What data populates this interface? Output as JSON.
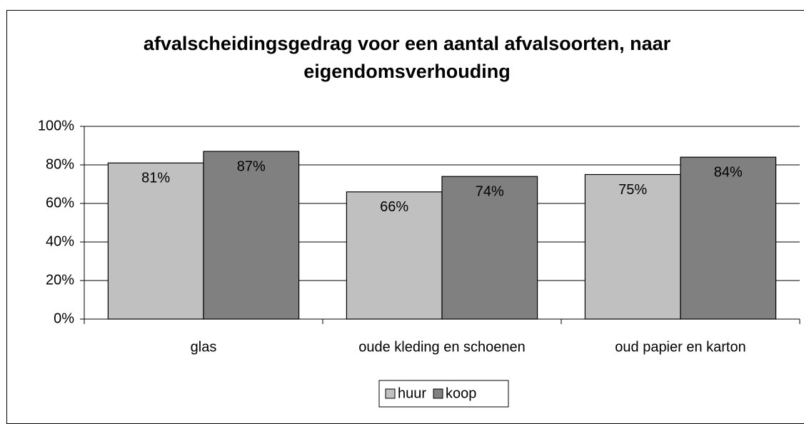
{
  "chart_data": {
    "type": "bar",
    "title": "afvalscheidingsgedrag voor een aantal afvalsoorten, naar eigendomsverhouding",
    "categories": [
      "glas",
      "oude kleding en schoenen",
      "oud papier en karton"
    ],
    "series": [
      {
        "name": "huur",
        "color": "#c0c0c0",
        "values": [
          81,
          66,
          75
        ],
        "value_labels": [
          "81%",
          "66%",
          "75%"
        ]
      },
      {
        "name": "koop",
        "color": "#808080",
        "values": [
          87,
          74,
          84
        ],
        "value_labels": [
          "87%",
          "74%",
          "84%"
        ]
      }
    ],
    "ylim": [
      0,
      100
    ],
    "yticks": [
      {
        "value": 0,
        "label": "0%"
      },
      {
        "value": 20,
        "label": "20%"
      },
      {
        "value": 40,
        "label": "40%"
      },
      {
        "value": 60,
        "label": "60%"
      },
      {
        "value": 80,
        "label": "80%"
      },
      {
        "value": 100,
        "label": "100%"
      }
    ],
    "grid": true,
    "legend": "bottom"
  }
}
